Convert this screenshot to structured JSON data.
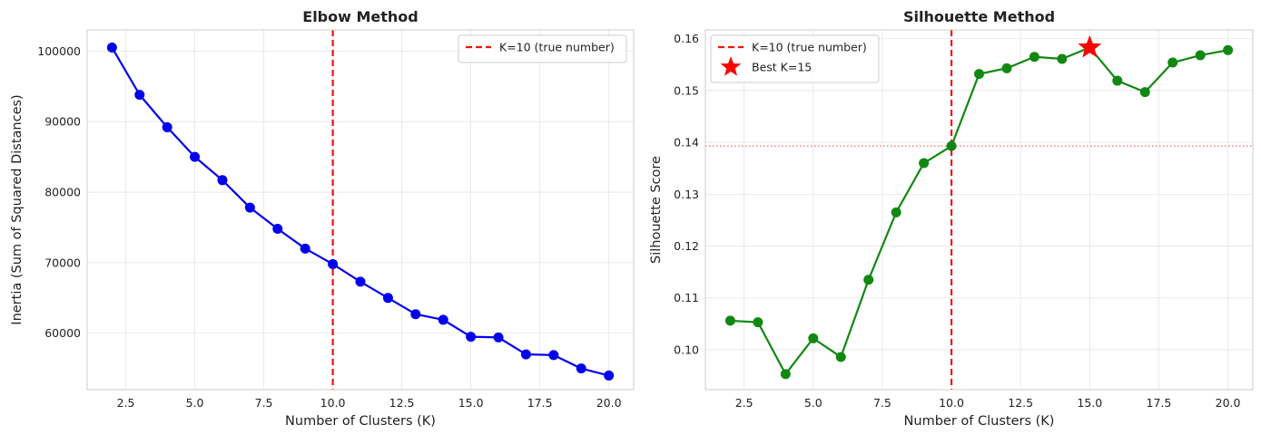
{
  "chart_data": [
    {
      "type": "line",
      "title": "Elbow Method",
      "xlabel": "Number of Clusters (K)",
      "ylabel": "Inertia (Sum of Squared Distances)",
      "xlim": [
        1.1,
        20.9
      ],
      "ylim": [
        52000,
        103000
      ],
      "xticks": [
        2.5,
        5.0,
        7.5,
        10.0,
        12.5,
        15.0,
        17.5,
        20.0
      ],
      "xtick_labels": [
        "2.5",
        "5.0",
        "7.5",
        "10.0",
        "12.5",
        "15.0",
        "17.5",
        "20.0"
      ],
      "yticks": [
        60000,
        70000,
        80000,
        90000,
        100000
      ],
      "ytick_labels": [
        "60000",
        "70000",
        "80000",
        "90000",
        "100000"
      ],
      "grid": true,
      "legend_position": "top-right",
      "series": [
        {
          "color": "#0000ee",
          "x": [
            2,
            3,
            4,
            5,
            6,
            7,
            8,
            9,
            10,
            11,
            12,
            13,
            14,
            15,
            16,
            17,
            18,
            19,
            20
          ],
          "values": [
            100500,
            93800,
            89200,
            85000,
            81700,
            77800,
            74800,
            72000,
            69800,
            67300,
            65000,
            62700,
            61900,
            59500,
            59400,
            57000,
            56900,
            55000,
            54000
          ]
        }
      ],
      "vlines": [
        {
          "x": 10,
          "color": "#ee1111",
          "style": "dashed",
          "label": "K=10 (true number)"
        }
      ]
    },
    {
      "type": "line",
      "title": "Silhouette Method",
      "xlabel": "Number of Clusters (K)",
      "ylabel": "Silhouette Score",
      "xlim": [
        1.1,
        20.9
      ],
      "ylim": [
        0.0923,
        0.1617
      ],
      "xticks": [
        2.5,
        5.0,
        7.5,
        10.0,
        12.5,
        15.0,
        17.5,
        20.0
      ],
      "xtick_labels": [
        "2.5",
        "5.0",
        "7.5",
        "10.0",
        "12.5",
        "15.0",
        "17.5",
        "20.0"
      ],
      "yticks": [
        0.1,
        0.11,
        0.12,
        0.13,
        0.14,
        0.15,
        0.16
      ],
      "ytick_labels": [
        "0.10",
        "0.11",
        "0.12",
        "0.13",
        "0.14",
        "0.15",
        "0.16"
      ],
      "grid": true,
      "legend_position": "top-left",
      "series": [
        {
          "color": "#118811",
          "x": [
            2,
            3,
            4,
            5,
            6,
            7,
            8,
            9,
            10,
            11,
            12,
            13,
            14,
            15,
            16,
            17,
            18,
            19,
            20
          ],
          "values": [
            0.1056,
            0.1053,
            0.0953,
            0.1022,
            0.0986,
            0.1135,
            0.1265,
            0.136,
            0.1393,
            0.1532,
            0.1543,
            0.1565,
            0.1561,
            0.1583,
            0.1519,
            0.1497,
            0.1554,
            0.1568,
            0.1578
          ]
        }
      ],
      "vlines": [
        {
          "x": 10,
          "color": "#ee1111",
          "style": "dashed",
          "label": "K=10 (true number)"
        }
      ],
      "hlines": [
        {
          "y": 0.1393,
          "color": "#ee6666",
          "style": "dotted"
        }
      ],
      "markers": [
        {
          "x": 15,
          "y": 0.1583,
          "shape": "star",
          "color": "#ff0000",
          "label": "Best K=15"
        }
      ]
    }
  ]
}
